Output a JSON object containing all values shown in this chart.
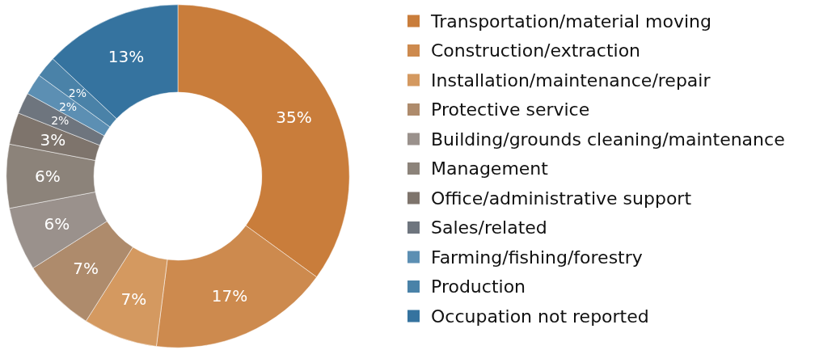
{
  "chart_data": {
    "type": "donut",
    "categories": [
      "Transportation/material moving",
      "Construction/extraction",
      "Installation/maintenance/repair",
      "Protective service",
      "Building/grounds cleaning/maintenance",
      "Management",
      "Office/administrative support",
      "Sales/related",
      "Farming/fishing/forestry",
      "Production",
      "Occupation not reported"
    ],
    "values": [
      35,
      17,
      7,
      7,
      6,
      6,
      3,
      2,
      2,
      2,
      13
    ],
    "colors": [
      "#c97d3b",
      "#cd8a4e",
      "#d49960",
      "#ae8b6c",
      "#9a918c",
      "#8c837a",
      "#7e746c",
      "#6e757e",
      "#5c8fb3",
      "#4a82a8",
      "#35739f"
    ],
    "value_labels": [
      "35%",
      "17%",
      "7%",
      "7%",
      "6%",
      "6%",
      "3%",
      "2%",
      "2%",
      "2%",
      "13%"
    ],
    "legend": "right"
  }
}
